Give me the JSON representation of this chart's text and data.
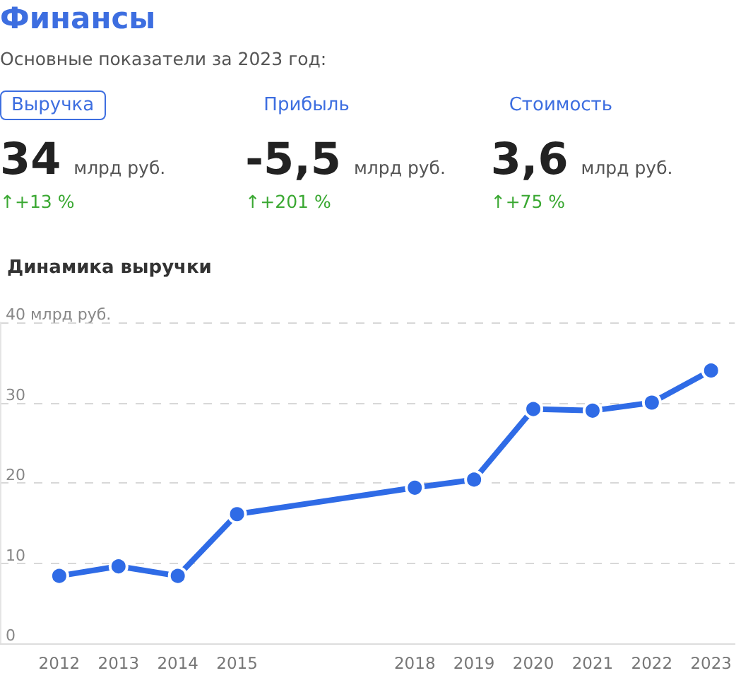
{
  "chart_data": [
    {
      "type": "other",
      "title": "Финансы",
      "subtitle": "Основные показатели за 2023 год:",
      "annotations": [
        "Выручка",
        "34",
        "млрд руб.",
        "↑+13 %",
        "Прибыль",
        "-5,5",
        "млрд руб.",
        "↑+201 %",
        "Стоимость",
        "3,6",
        "млрд руб.",
        "↑+75 %"
      ]
    },
    {
      "type": "line",
      "title": "Динамика выручки",
      "x": [
        2012,
        2013,
        2014,
        2015,
        2018,
        2019,
        2020,
        2021,
        2022,
        2023
      ],
      "series": [
        {
          "color": "#2f6be6",
          "values": [
            8.4,
            9.6,
            8.4,
            16.1,
            19.4,
            20.4,
            29.2,
            29.0,
            30.0,
            34.0
          ]
        }
      ],
      "xlim": [
        2011,
        2023.4
      ],
      "xticks": [
        2012,
        2013,
        2014,
        2015,
        2018,
        2019,
        2020,
        2021,
        2022,
        2023
      ],
      "ylim": [
        0,
        40
      ],
      "yticks": [
        0,
        10,
        20,
        30,
        {
          "value": 40,
          "label": "40 млрд руб."
        }
      ],
      "grid": "y",
      "marker": "circle",
      "line_style": "solid"
    }
  ]
}
